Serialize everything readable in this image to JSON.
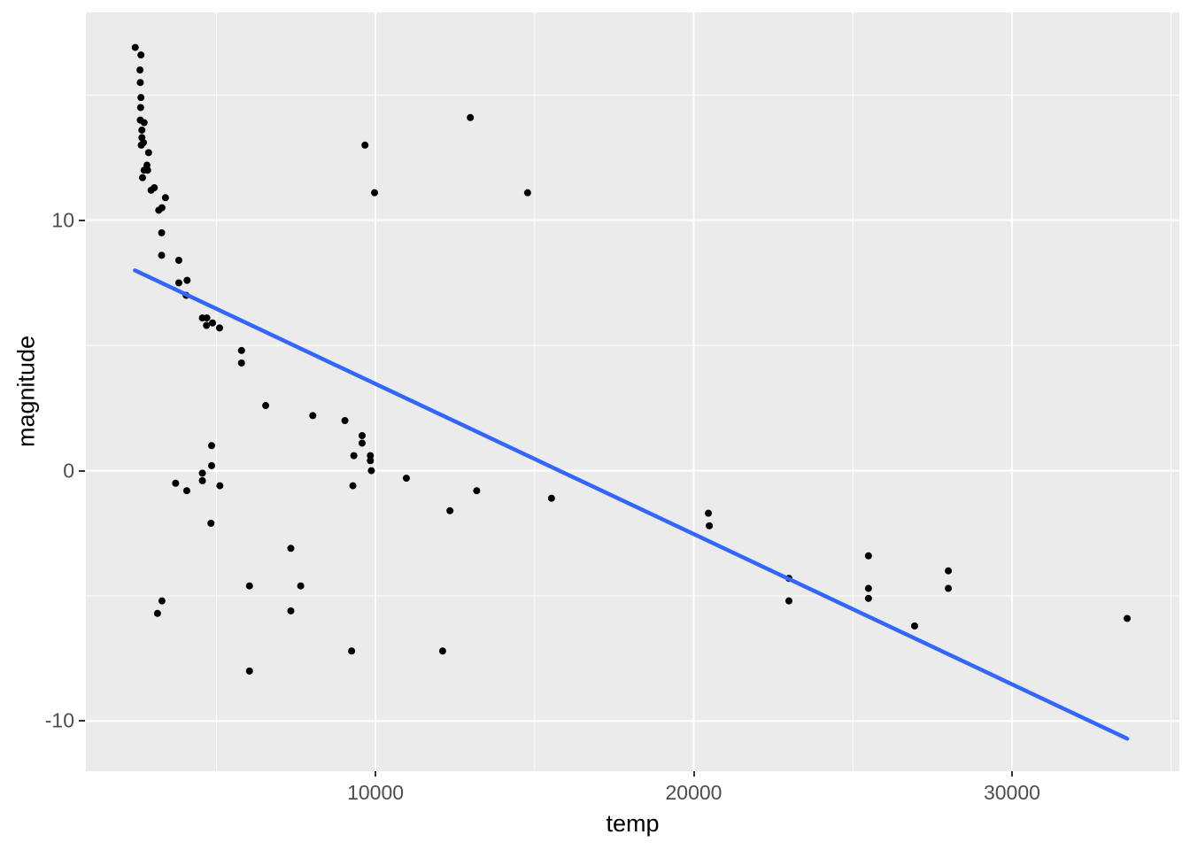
{
  "chart_data": {
    "type": "scatter",
    "title": "",
    "xlabel": "temp",
    "ylabel": "magnitude",
    "xlim": [
      900,
      35260
    ],
    "ylim": [
      -12.0,
      18.3
    ],
    "grid": "on",
    "legend_position": "none",
    "x_major_ticks": [
      {
        "value": 10000,
        "label": "10000"
      },
      {
        "value": 20000,
        "label": "20000"
      },
      {
        "value": 30000,
        "label": "30000"
      }
    ],
    "y_major_ticks": [
      {
        "value": 10,
        "label": "10"
      },
      {
        "value": 0,
        "label": "0"
      },
      {
        "value": -10,
        "label": "-10"
      }
    ],
    "x_minor_ticks": [
      5000,
      15000,
      25000,
      35000
    ],
    "y_minor_ticks": [
      15,
      5,
      -5
    ],
    "series": [
      {
        "name": "observations",
        "geom": "point",
        "color": "#000000",
        "points": [
          [
            2450,
            16.9
          ],
          [
            2630,
            16.6
          ],
          [
            2600,
            16.0
          ],
          [
            2610,
            15.5
          ],
          [
            2630,
            14.9
          ],
          [
            2620,
            14.5
          ],
          [
            2610,
            14.0
          ],
          [
            2730,
            13.9
          ],
          [
            2660,
            13.6
          ],
          [
            2660,
            13.3
          ],
          [
            2710,
            13.1
          ],
          [
            2640,
            13.0
          ],
          [
            2870,
            12.7
          ],
          [
            2820,
            12.2
          ],
          [
            2840,
            12.0
          ],
          [
            2730,
            12.0
          ],
          [
            2680,
            11.7
          ],
          [
            3050,
            11.3
          ],
          [
            2950,
            11.2
          ],
          [
            3400,
            10.9
          ],
          [
            3290,
            10.5
          ],
          [
            3190,
            10.4
          ],
          [
            3280,
            9.5
          ],
          [
            3280,
            8.6
          ],
          [
            3820,
            8.4
          ],
          [
            4080,
            7.6
          ],
          [
            3820,
            7.5
          ],
          [
            4050,
            7.0
          ],
          [
            4560,
            6.1
          ],
          [
            4700,
            6.1
          ],
          [
            4880,
            5.9
          ],
          [
            4690,
            5.8
          ],
          [
            5100,
            5.7
          ],
          [
            5790,
            4.8
          ],
          [
            5790,
            4.3
          ],
          [
            6550,
            2.6
          ],
          [
            8030,
            2.2
          ],
          [
            9040,
            2.0
          ],
          [
            9580,
            1.4
          ],
          [
            9580,
            1.1
          ],
          [
            4850,
            1.0
          ],
          [
            9320,
            0.6
          ],
          [
            9840,
            0.6
          ],
          [
            9840,
            0.4
          ],
          [
            4850,
            0.2
          ],
          [
            9870,
            0.0
          ],
          [
            4560,
            -0.1
          ],
          [
            10970,
            -0.3
          ],
          [
            4560,
            -0.4
          ],
          [
            3720,
            -0.5
          ],
          [
            5110,
            -0.6
          ],
          [
            9290,
            -0.6
          ],
          [
            13180,
            -0.8
          ],
          [
            4070,
            -0.8
          ],
          [
            15530,
            -1.1
          ],
          [
            12340,
            -1.6
          ],
          [
            20460,
            -1.7
          ],
          [
            4830,
            -2.1
          ],
          [
            20490,
            -2.2
          ],
          [
            7340,
            -3.1
          ],
          [
            25490,
            -3.4
          ],
          [
            28000,
            -4.0
          ],
          [
            22990,
            -4.3
          ],
          [
            6040,
            -4.6
          ],
          [
            7650,
            -4.6
          ],
          [
            25490,
            -4.7
          ],
          [
            28000,
            -4.7
          ],
          [
            25490,
            -5.1
          ],
          [
            22990,
            -5.2
          ],
          [
            3290,
            -5.2
          ],
          [
            3150,
            -5.7
          ],
          [
            7340,
            -5.6
          ],
          [
            33620,
            -5.9
          ],
          [
            26940,
            -6.2
          ],
          [
            9250,
            -7.2
          ],
          [
            12110,
            -7.2
          ],
          [
            6040,
            -8.0
          ],
          [
            12980,
            14.1
          ],
          [
            9670,
            13.0
          ],
          [
            9970,
            11.1
          ],
          [
            14780,
            11.1
          ]
        ]
      },
      {
        "name": "linear-fit",
        "geom": "line",
        "color": "#3366FF",
        "endpoints": [
          [
            2440,
            8.0
          ],
          [
            33620,
            -10.7
          ]
        ]
      }
    ],
    "style": {
      "panel_background": "#EBEBEB",
      "grid_color": "#FFFFFF",
      "point_radius": 4,
      "line_width": 4.5,
      "tick_label_color": "#4d4d4d",
      "axis_title_color": "#000000"
    }
  }
}
